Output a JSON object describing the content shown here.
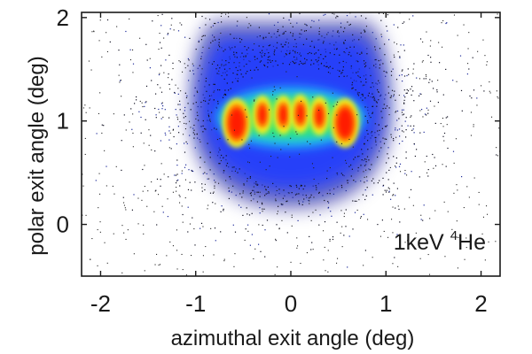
{
  "chart_data": {
    "type": "heatmap",
    "xlabel": "azimuthal exit angle (deg)",
    "ylabel": "polar exit angle (deg)",
    "xlim": [
      -2.2,
      2.2
    ],
    "ylim": [
      -0.5,
      2.05
    ],
    "x_ticks": [
      -2,
      -1,
      0,
      1,
      2
    ],
    "x_tick_labels": [
      "-2",
      "-1",
      "0",
      "1",
      "2"
    ],
    "y_ticks": [
      0,
      1,
      2
    ],
    "y_tick_labels": [
      "0",
      "1",
      "2"
    ],
    "grid": false,
    "colormap": [
      "#0a0a8c",
      "#1f3cff",
      "#20c8ff",
      "#30e870",
      "#f0f020",
      "#ff8800",
      "#ff1a00"
    ],
    "annotation": {
      "prefix": "1keV ",
      "superscript": "4",
      "suffix": "He",
      "position": "bottom-right"
    },
    "distribution": {
      "envelope_x_range": [
        -1.05,
        1.05
      ],
      "envelope_y_range": [
        0.15,
        2.0
      ],
      "band_center_y": 1.0,
      "hotspots": [
        {
          "x": -0.57,
          "y": 0.98,
          "intensity": 1.0
        },
        {
          "x": -0.3,
          "y": 1.06,
          "intensity": 0.75
        },
        {
          "x": -0.08,
          "y": 1.06,
          "intensity": 0.8
        },
        {
          "x": 0.1,
          "y": 1.07,
          "intensity": 0.75
        },
        {
          "x": 0.3,
          "y": 1.05,
          "intensity": 0.7
        },
        {
          "x": 0.57,
          "y": 0.98,
          "intensity": 1.0
        }
      ]
    }
  }
}
